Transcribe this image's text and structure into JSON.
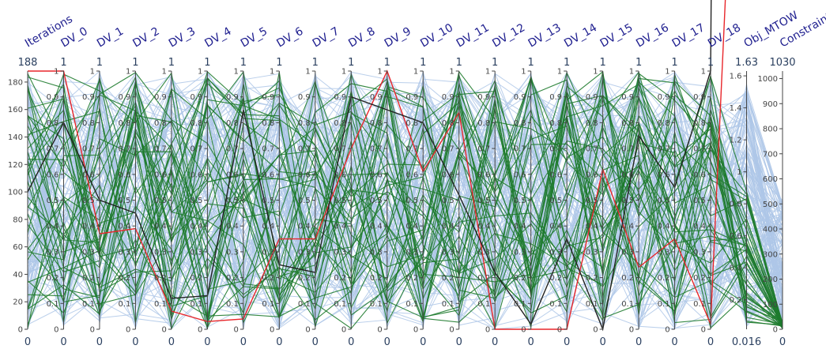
{
  "chart_data": {
    "type": "parallel_coordinates",
    "axes": [
      {
        "id": "iterations",
        "label": "Iterations",
        "range": [
          0,
          188
        ],
        "max_label": "188",
        "min_label": "0",
        "ticks": [
          0,
          20,
          40,
          60,
          80,
          100,
          120,
          140,
          160,
          180
        ],
        "tick_labels": [
          "0",
          "20",
          "40",
          "60",
          "80",
          "100",
          "120",
          "140",
          "160",
          "180"
        ]
      },
      {
        "id": "dv0",
        "label": "DV_0",
        "range": [
          0,
          1
        ],
        "max_label": "1",
        "min_label": "0",
        "ticks": [
          0,
          0.1,
          0.2,
          0.3,
          0.4,
          0.5,
          0.6,
          0.7,
          0.8,
          0.9,
          1
        ],
        "tick_labels": [
          "0",
          "0.1",
          "0.2",
          "0.3",
          "0.4",
          "0.5",
          "0.6",
          "0.7",
          "0.8",
          "0.9",
          "1"
        ]
      },
      {
        "id": "dv1",
        "label": "DV_1",
        "range": [
          0,
          1
        ],
        "max_label": "1",
        "min_label": "0",
        "ticks": [
          0,
          0.1,
          0.2,
          0.3,
          0.4,
          0.5,
          0.6,
          0.7,
          0.8,
          0.9,
          1
        ],
        "tick_labels": [
          "0",
          "0.1",
          "0.2",
          "0.3",
          "0.4",
          "0.5",
          "0.6",
          "0.7",
          "0.8",
          "0.9",
          "1"
        ]
      },
      {
        "id": "dv2",
        "label": "DV_2",
        "range": [
          0,
          1
        ],
        "max_label": "1",
        "min_label": "0",
        "ticks": [
          0,
          0.1,
          0.2,
          0.3,
          0.4,
          0.5,
          0.6,
          0.7,
          0.8,
          0.9,
          1
        ],
        "tick_labels": [
          "0",
          "0.1",
          "0.2",
          "0.3",
          "0.4",
          "0.5",
          "0.6",
          "0.7",
          "0.8",
          "0.9",
          "1"
        ]
      },
      {
        "id": "dv3",
        "label": "DV_3",
        "range": [
          0,
          1
        ],
        "max_label": "1",
        "min_label": "0",
        "ticks": [
          0,
          0.1,
          0.2,
          0.3,
          0.4,
          0.5,
          0.6,
          0.7,
          0.8,
          0.9,
          1
        ],
        "tick_labels": [
          "0",
          "0.1",
          "0.2",
          "0.3",
          "0.4",
          "0.5",
          "0.6",
          "0.7",
          "0.8",
          "0.9",
          "1"
        ]
      },
      {
        "id": "dv4",
        "label": "DV_4",
        "range": [
          0,
          1
        ],
        "max_label": "1",
        "min_label": "0",
        "ticks": [
          0,
          0.1,
          0.2,
          0.3,
          0.4,
          0.5,
          0.6,
          0.7,
          0.8,
          0.9,
          1
        ],
        "tick_labels": [
          "0",
          "0.1",
          "0.2",
          "0.3",
          "0.4",
          "0.5",
          "0.6",
          "0.7",
          "0.8",
          "0.9",
          "1"
        ]
      },
      {
        "id": "dv5",
        "label": "DV_5",
        "range": [
          0,
          1
        ],
        "max_label": "1",
        "min_label": "0",
        "ticks": [
          0,
          0.1,
          0.2,
          0.3,
          0.4,
          0.5,
          0.6,
          0.7,
          0.8,
          0.9,
          1
        ],
        "tick_labels": [
          "0",
          "0.1",
          "0.2",
          "0.3",
          "0.4",
          "0.5",
          "0.6",
          "0.7",
          "0.8",
          "0.9",
          "1"
        ]
      },
      {
        "id": "dv6",
        "label": "DV_6",
        "range": [
          0,
          1
        ],
        "max_label": "1",
        "min_label": "0",
        "ticks": [
          0,
          0.1,
          0.2,
          0.3,
          0.4,
          0.5,
          0.6,
          0.7,
          0.8,
          0.9,
          1
        ],
        "tick_labels": [
          "0",
          "0.1",
          "0.2",
          "0.3",
          "0.4",
          "0.5",
          "0.6",
          "0.7",
          "0.8",
          "0.9",
          "1"
        ]
      },
      {
        "id": "dv7",
        "label": "DV_7",
        "range": [
          0,
          1
        ],
        "max_label": "1",
        "min_label": "0",
        "ticks": [
          0,
          0.1,
          0.2,
          0.3,
          0.4,
          0.5,
          0.6,
          0.7,
          0.8,
          0.9,
          1
        ],
        "tick_labels": [
          "0",
          "0.1",
          "0.2",
          "0.3",
          "0.4",
          "0.5",
          "0.6",
          "0.7",
          "0.8",
          "0.9",
          "1"
        ]
      },
      {
        "id": "dv8",
        "label": "DV_8",
        "range": [
          0,
          1
        ],
        "max_label": "1",
        "min_label": "0",
        "ticks": [
          0,
          0.1,
          0.2,
          0.3,
          0.4,
          0.5,
          0.6,
          0.7,
          0.8,
          0.9,
          1
        ],
        "tick_labels": [
          "0",
          "0.1",
          "0.2",
          "0.3",
          "0.4",
          "0.5",
          "0.6",
          "0.7",
          "0.8",
          "0.9",
          "1"
        ]
      },
      {
        "id": "dv9",
        "label": "DV_9",
        "range": [
          0,
          1
        ],
        "max_label": "1",
        "min_label": "0",
        "ticks": [
          0,
          0.1,
          0.2,
          0.3,
          0.4,
          0.5,
          0.6,
          0.7,
          0.8,
          0.9,
          1
        ],
        "tick_labels": [
          "0",
          "0.1",
          "0.2",
          "0.3",
          "0.4",
          "0.5",
          "0.6",
          "0.7",
          "0.8",
          "0.9",
          "1"
        ]
      },
      {
        "id": "dv10",
        "label": "DV_10",
        "range": [
          0,
          1
        ],
        "max_label": "1",
        "min_label": "0",
        "ticks": [
          0,
          0.1,
          0.2,
          0.3,
          0.4,
          0.5,
          0.6,
          0.7,
          0.8,
          0.9,
          1
        ],
        "tick_labels": [
          "0",
          "0.1",
          "0.2",
          "0.3",
          "0.4",
          "0.5",
          "0.6",
          "0.7",
          "0.8",
          "0.9",
          "1"
        ]
      },
      {
        "id": "dv11",
        "label": "DV_11",
        "range": [
          0,
          1
        ],
        "max_label": "1",
        "min_label": "0",
        "ticks": [
          0,
          0.1,
          0.2,
          0.3,
          0.4,
          0.5,
          0.6,
          0.7,
          0.8,
          0.9,
          1
        ],
        "tick_labels": [
          "0",
          "0.1",
          "0.2",
          "0.3",
          "0.4",
          "0.5",
          "0.6",
          "0.7",
          "0.8",
          "0.9",
          "1"
        ]
      },
      {
        "id": "dv12",
        "label": "DV_12",
        "range": [
          0,
          1
        ],
        "max_label": "1",
        "min_label": "0",
        "ticks": [
          0,
          0.1,
          0.2,
          0.3,
          0.4,
          0.5,
          0.6,
          0.7,
          0.8,
          0.9,
          1
        ],
        "tick_labels": [
          "0",
          "0.1",
          "0.2",
          "0.3",
          "0.4",
          "0.5",
          "0.6",
          "0.7",
          "0.8",
          "0.9",
          "1"
        ]
      },
      {
        "id": "dv13",
        "label": "DV_13",
        "range": [
          0,
          1
        ],
        "max_label": "1",
        "min_label": "0",
        "ticks": [
          0,
          0.1,
          0.2,
          0.3,
          0.4,
          0.5,
          0.6,
          0.7,
          0.8,
          0.9,
          1
        ],
        "tick_labels": [
          "0",
          "0.1",
          "0.2",
          "0.3",
          "0.4",
          "0.5",
          "0.6",
          "0.7",
          "0.8",
          "0.9",
          "1"
        ]
      },
      {
        "id": "dv14",
        "label": "DV_14",
        "range": [
          0,
          1
        ],
        "max_label": "1",
        "min_label": "0",
        "ticks": [
          0,
          0.1,
          0.2,
          0.3,
          0.4,
          0.5,
          0.6,
          0.7,
          0.8,
          0.9,
          1
        ],
        "tick_labels": [
          "0",
          "0.1",
          "0.2",
          "0.3",
          "0.4",
          "0.5",
          "0.6",
          "0.7",
          "0.8",
          "0.9",
          "1"
        ]
      },
      {
        "id": "dv15",
        "label": "DV_15",
        "range": [
          0,
          1
        ],
        "max_label": "1",
        "min_label": "0",
        "ticks": [
          0,
          0.1,
          0.2,
          0.3,
          0.4,
          0.5,
          0.6,
          0.7,
          0.8,
          0.9,
          1
        ],
        "tick_labels": [
          "0",
          "0.1",
          "0.2",
          "0.3",
          "0.4",
          "0.5",
          "0.6",
          "0.7",
          "0.8",
          "0.9",
          "1"
        ]
      },
      {
        "id": "dv16",
        "label": "DV_16",
        "range": [
          0,
          1
        ],
        "max_label": "1",
        "min_label": "0",
        "ticks": [
          0,
          0.1,
          0.2,
          0.3,
          0.4,
          0.5,
          0.6,
          0.7,
          0.8,
          0.9,
          1
        ],
        "tick_labels": [
          "0",
          "0.1",
          "0.2",
          "0.3",
          "0.4",
          "0.5",
          "0.6",
          "0.7",
          "0.8",
          "0.9",
          "1"
        ]
      },
      {
        "id": "dv17",
        "label": "DV_17",
        "range": [
          0,
          1
        ],
        "max_label": "1",
        "min_label": "0",
        "ticks": [
          0,
          0.1,
          0.2,
          0.3,
          0.4,
          0.5,
          0.6,
          0.7,
          0.8,
          0.9,
          1
        ],
        "tick_labels": [
          "0",
          "0.1",
          "0.2",
          "0.3",
          "0.4",
          "0.5",
          "0.6",
          "0.7",
          "0.8",
          "0.9",
          "1"
        ]
      },
      {
        "id": "dv18",
        "label": "DV_18",
        "range": [
          0,
          1
        ],
        "max_label": "1",
        "min_label": "0",
        "ticks": [
          0,
          0.1,
          0.2,
          0.3,
          0.4,
          0.5,
          0.6,
          0.7,
          0.8,
          0.9,
          1
        ],
        "tick_labels": [
          "0",
          "0.1",
          "0.2",
          "0.3",
          "0.4",
          "0.5",
          "0.6",
          "0.7",
          "0.8",
          "0.9",
          "1"
        ]
      },
      {
        "id": "obj_mtow",
        "label": "Obj_MTOW",
        "range": [
          0.016,
          1.63
        ],
        "max_label": "1.63",
        "min_label": "0.016",
        "ticks": [
          0.2,
          0.4,
          0.6,
          0.8,
          1,
          1.2,
          1.4,
          1.6
        ],
        "tick_labels": [
          "0.2",
          "0.4",
          "0.6",
          "0.8",
          "1",
          "1.2",
          "1.4",
          "1.6"
        ]
      },
      {
        "id": "constraints",
        "label": "Constraints",
        "range": [
          0,
          1030
        ],
        "max_label": "1030",
        "min_label": "0",
        "ticks": [
          0,
          100,
          200,
          300,
          400,
          500,
          600,
          700,
          800,
          900,
          1000
        ],
        "tick_labels": [
          "0",
          "100",
          "200",
          "300",
          "400",
          "500",
          "600",
          "700",
          "800",
          "900",
          "1000"
        ]
      }
    ],
    "colors": {
      "background_lines": "#aec7e8",
      "feasible_lines": "#1e7b2e",
      "final_line": "#222222",
      "highlight_line": "#e8262b",
      "axis_title": "#1f1f8f",
      "axis_text": "#2a3f5f"
    },
    "highlight_series": [
      {
        "role": "red",
        "values": [
          188,
          1.0,
          0.37,
          0.39,
          0.07,
          0.03,
          0.04,
          0.35,
          0.35,
          0.7,
          1.0,
          0.61,
          0.84,
          0.0,
          0.0,
          0.0,
          0.62,
          0.24,
          0.35,
          0.02,
          5
        ]
      },
      {
        "role": "black",
        "values": [
          100,
          0.8,
          0.5,
          0.45,
          0.12,
          0.13,
          0.85,
          0.25,
          0.22,
          0.9,
          0.85,
          0.8,
          0.52,
          0.22,
          0.02,
          0.35,
          0.0,
          0.75,
          0.55,
          1.0,
          30
        ]
      }
    ]
  }
}
